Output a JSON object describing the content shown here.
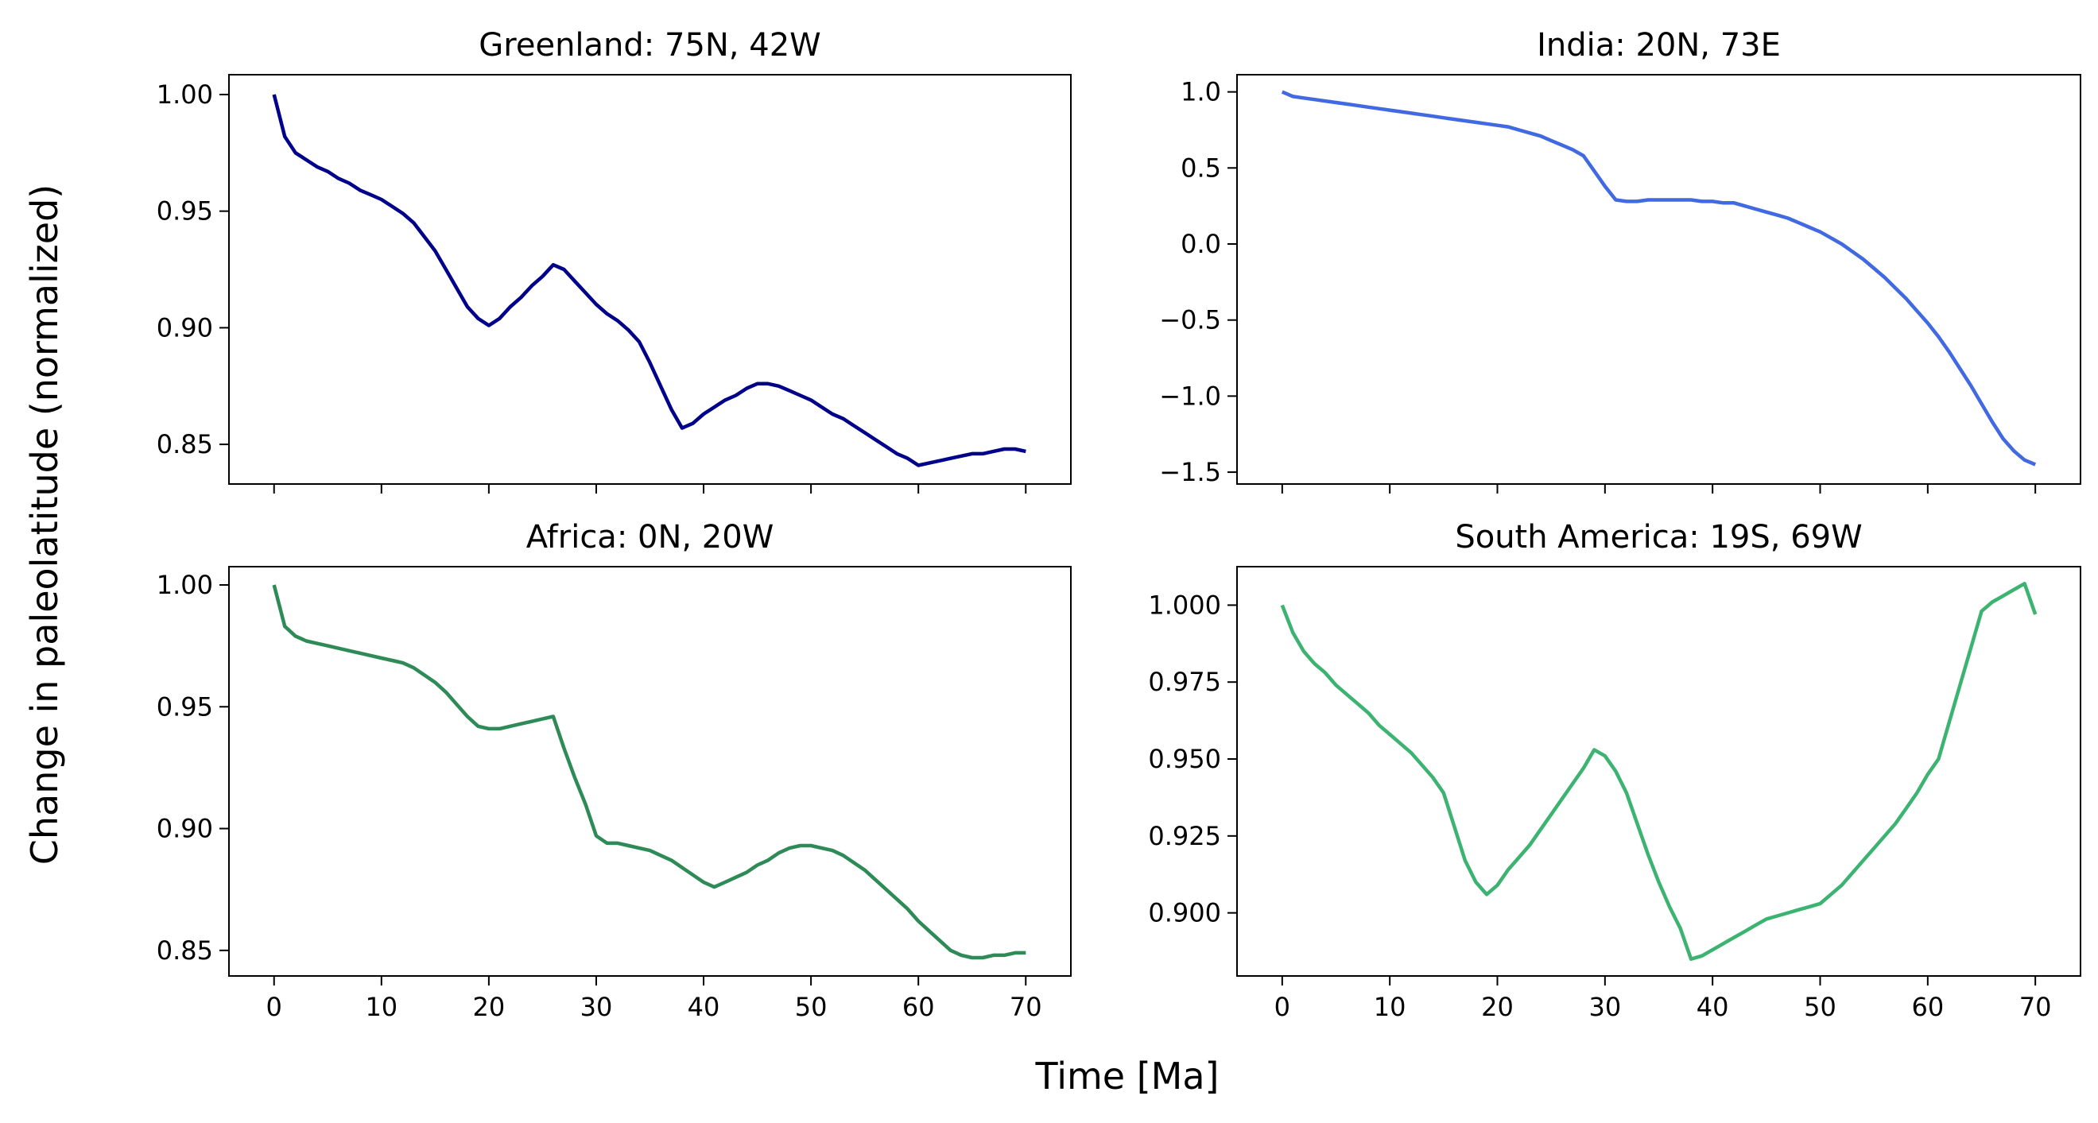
{
  "figure": {
    "ylabel": "Change in paleolatitude (normalized)",
    "xlabel": "Time [Ma]"
  },
  "chart_data": [
    {
      "type": "line",
      "title": "Greenland: 75N, 42W",
      "color": "#00008b",
      "xlim": [
        -4.2,
        74.2
      ],
      "ylim": [
        0.833,
        1.0085
      ],
      "xticks": [
        0,
        10,
        20,
        30,
        40,
        50,
        60,
        70
      ],
      "yticks": [
        0.85,
        0.9,
        0.95,
        1.0
      ],
      "ytick_labels": [
        "0.85",
        "0.90",
        "0.95",
        "1.00"
      ],
      "show_xtick_labels": false,
      "x": [
        0,
        1,
        2,
        3,
        4,
        5,
        6,
        7,
        8,
        9,
        10,
        11,
        12,
        13,
        14,
        15,
        16,
        17,
        18,
        19,
        20,
        21,
        22,
        23,
        24,
        25,
        26,
        27,
        28,
        29,
        30,
        31,
        32,
        33,
        34,
        35,
        36,
        37,
        38,
        39,
        40,
        41,
        42,
        43,
        44,
        45,
        46,
        47,
        48,
        49,
        50,
        51,
        52,
        53,
        54,
        55,
        56,
        57,
        58,
        59,
        60,
        61,
        62,
        63,
        64,
        65,
        66,
        67,
        68,
        69,
        70
      ],
      "values": [
        1.0,
        0.982,
        0.975,
        0.972,
        0.969,
        0.967,
        0.964,
        0.962,
        0.959,
        0.957,
        0.955,
        0.952,
        0.949,
        0.945,
        0.939,
        0.933,
        0.925,
        0.917,
        0.909,
        0.904,
        0.901,
        0.904,
        0.909,
        0.913,
        0.918,
        0.922,
        0.927,
        0.925,
        0.92,
        0.915,
        0.91,
        0.906,
        0.903,
        0.899,
        0.894,
        0.885,
        0.875,
        0.865,
        0.857,
        0.859,
        0.863,
        0.866,
        0.869,
        0.871,
        0.874,
        0.876,
        0.876,
        0.875,
        0.873,
        0.871,
        0.869,
        0.866,
        0.863,
        0.861,
        0.858,
        0.855,
        0.852,
        0.849,
        0.846,
        0.844,
        0.841,
        0.842,
        0.843,
        0.844,
        0.845,
        0.846,
        0.846,
        0.847,
        0.848,
        0.848,
        0.847
      ]
    },
    {
      "type": "line",
      "title": "India: 20N, 73E",
      "color": "#4169e1",
      "xlim": [
        -4.2,
        74.2
      ],
      "ylim": [
        -1.578,
        1.113
      ],
      "xticks": [
        0,
        10,
        20,
        30,
        40,
        50,
        60,
        70
      ],
      "yticks": [
        -1.5,
        -1.0,
        -0.5,
        0.0,
        0.5,
        1.0
      ],
      "ytick_labels": [
        "−1.5",
        "−1.0",
        "−0.5",
        "0.0",
        "0.5",
        "1.0"
      ],
      "show_xtick_labels": false,
      "x": [
        0,
        1,
        2,
        3,
        4,
        5,
        6,
        7,
        8,
        9,
        10,
        11,
        12,
        13,
        14,
        15,
        16,
        17,
        18,
        19,
        20,
        21,
        22,
        23,
        24,
        25,
        26,
        27,
        28,
        29,
        30,
        31,
        32,
        33,
        34,
        35,
        36,
        37,
        38,
        39,
        40,
        41,
        42,
        43,
        44,
        45,
        46,
        47,
        48,
        49,
        50,
        51,
        52,
        53,
        54,
        55,
        56,
        57,
        58,
        59,
        60,
        61,
        62,
        63,
        64,
        65,
        66,
        67,
        68,
        69,
        70
      ],
      "values": [
        1.0,
        0.97,
        0.96,
        0.95,
        0.94,
        0.93,
        0.92,
        0.91,
        0.9,
        0.89,
        0.88,
        0.87,
        0.86,
        0.85,
        0.84,
        0.83,
        0.82,
        0.81,
        0.8,
        0.79,
        0.78,
        0.77,
        0.75,
        0.73,
        0.71,
        0.68,
        0.65,
        0.62,
        0.58,
        0.48,
        0.38,
        0.29,
        0.28,
        0.28,
        0.29,
        0.29,
        0.29,
        0.29,
        0.29,
        0.28,
        0.28,
        0.27,
        0.27,
        0.25,
        0.23,
        0.21,
        0.19,
        0.17,
        0.14,
        0.11,
        0.08,
        0.04,
        0.0,
        -0.05,
        -0.1,
        -0.16,
        -0.22,
        -0.29,
        -0.36,
        -0.44,
        -0.52,
        -0.61,
        -0.71,
        -0.82,
        -0.93,
        -1.05,
        -1.17,
        -1.28,
        -1.36,
        -1.42,
        -1.45
      ]
    },
    {
      "type": "line",
      "title": "Africa: 0N, 20W",
      "color": "#2e8b57",
      "xlim": [
        -4.2,
        74.2
      ],
      "ylim": [
        0.8395,
        1.0075
      ],
      "xticks": [
        0,
        10,
        20,
        30,
        40,
        50,
        60,
        70
      ],
      "xtick_labels": [
        "0",
        "10",
        "20",
        "30",
        "40",
        "50",
        "60",
        "70"
      ],
      "yticks": [
        0.85,
        0.9,
        0.95,
        1.0
      ],
      "ytick_labels": [
        "0.85",
        "0.90",
        "0.95",
        "1.00"
      ],
      "show_xtick_labels": true,
      "x": [
        0,
        1,
        2,
        3,
        4,
        5,
        6,
        7,
        8,
        9,
        10,
        11,
        12,
        13,
        14,
        15,
        16,
        17,
        18,
        19,
        20,
        21,
        22,
        23,
        24,
        25,
        26,
        27,
        28,
        29,
        30,
        31,
        32,
        33,
        34,
        35,
        36,
        37,
        38,
        39,
        40,
        41,
        42,
        43,
        44,
        45,
        46,
        47,
        48,
        49,
        50,
        51,
        52,
        53,
        54,
        55,
        56,
        57,
        58,
        59,
        60,
        61,
        62,
        63,
        64,
        65,
        66,
        67,
        68,
        69,
        70
      ],
      "values": [
        1.0,
        0.983,
        0.979,
        0.977,
        0.976,
        0.975,
        0.974,
        0.973,
        0.972,
        0.971,
        0.97,
        0.969,
        0.968,
        0.966,
        0.963,
        0.96,
        0.956,
        0.951,
        0.946,
        0.942,
        0.941,
        0.941,
        0.942,
        0.943,
        0.944,
        0.945,
        0.946,
        0.933,
        0.921,
        0.91,
        0.897,
        0.894,
        0.894,
        0.893,
        0.892,
        0.891,
        0.889,
        0.887,
        0.884,
        0.881,
        0.878,
        0.876,
        0.878,
        0.88,
        0.882,
        0.885,
        0.887,
        0.89,
        0.892,
        0.893,
        0.893,
        0.892,
        0.891,
        0.889,
        0.886,
        0.883,
        0.879,
        0.875,
        0.871,
        0.867,
        0.862,
        0.858,
        0.854,
        0.85,
        0.848,
        0.847,
        0.847,
        0.848,
        0.848,
        0.849,
        0.849
      ]
    },
    {
      "type": "line",
      "title": "South America: 19S, 69W",
      "color": "#3cb371",
      "xlim": [
        -4.2,
        74.2
      ],
      "ylim": [
        0.8795,
        1.0125
      ],
      "xticks": [
        0,
        10,
        20,
        30,
        40,
        50,
        60,
        70
      ],
      "xtick_labels": [
        "0",
        "10",
        "20",
        "30",
        "40",
        "50",
        "60",
        "70"
      ],
      "yticks": [
        0.9,
        0.925,
        0.95,
        0.975,
        1.0
      ],
      "ytick_labels": [
        "0.900",
        "0.925",
        "0.950",
        "0.975",
        "1.000"
      ],
      "show_xtick_labels": true,
      "x": [
        0,
        1,
        2,
        3,
        4,
        5,
        6,
        7,
        8,
        9,
        10,
        11,
        12,
        13,
        14,
        15,
        16,
        17,
        18,
        19,
        20,
        21,
        22,
        23,
        24,
        25,
        26,
        27,
        28,
        29,
        30,
        31,
        32,
        33,
        34,
        35,
        36,
        37,
        38,
        39,
        40,
        41,
        42,
        43,
        44,
        45,
        46,
        47,
        48,
        49,
        50,
        51,
        52,
        53,
        54,
        55,
        56,
        57,
        58,
        59,
        60,
        61,
        62,
        63,
        64,
        65,
        66,
        67,
        68,
        69,
        70
      ],
      "values": [
        1.0,
        0.991,
        0.985,
        0.981,
        0.978,
        0.974,
        0.971,
        0.968,
        0.965,
        0.961,
        0.958,
        0.955,
        0.952,
        0.948,
        0.944,
        0.939,
        0.928,
        0.917,
        0.91,
        0.906,
        0.909,
        0.914,
        0.918,
        0.922,
        0.927,
        0.932,
        0.937,
        0.942,
        0.947,
        0.953,
        0.951,
        0.946,
        0.939,
        0.929,
        0.919,
        0.91,
        0.902,
        0.895,
        0.885,
        0.886,
        0.888,
        0.89,
        0.892,
        0.894,
        0.896,
        0.898,
        0.899,
        0.9,
        0.901,
        0.902,
        0.903,
        0.906,
        0.909,
        0.913,
        0.917,
        0.921,
        0.925,
        0.929,
        0.934,
        0.939,
        0.945,
        0.95,
        0.962,
        0.974,
        0.986,
        0.998,
        1.001,
        1.003,
        1.005,
        1.007,
        0.997
      ]
    }
  ]
}
